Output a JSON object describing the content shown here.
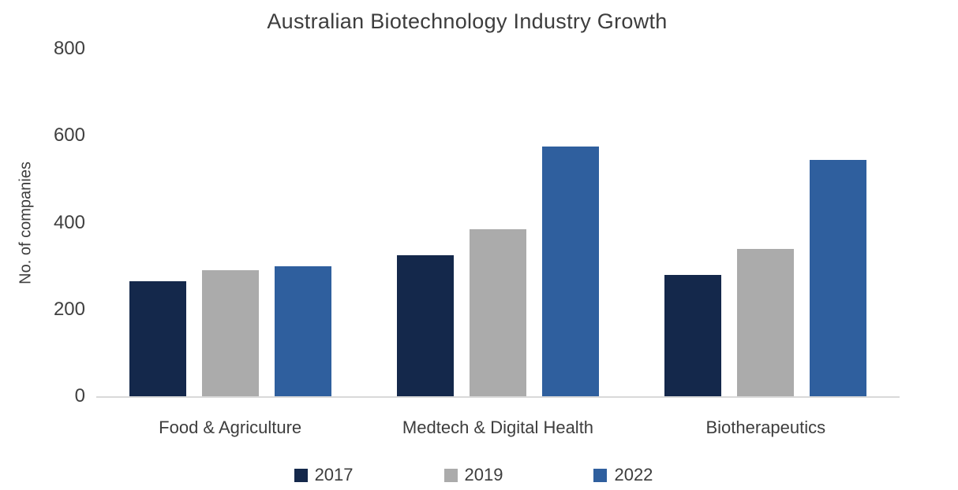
{
  "chart_data": {
    "type": "bar",
    "title": "Australian Biotechnology Industry Growth",
    "ylabel": "No. of companies",
    "xlabel": "",
    "categories": [
      "Food & Agriculture",
      "Medtech & Digital Health",
      "Biotherapeutics"
    ],
    "series": [
      {
        "name": "2017",
        "color": "#14284b",
        "values": [
          265,
          325,
          280
        ]
      },
      {
        "name": "2019",
        "color": "#ababab",
        "values": [
          290,
          385,
          340
        ]
      },
      {
        "name": "2022",
        "color": "#2f5f9e",
        "values": [
          300,
          575,
          545
        ]
      }
    ],
    "ylim": [
      0,
      800
    ],
    "yticks": [
      0,
      200,
      400,
      600,
      800
    ],
    "grid": false,
    "legend_position": "bottom",
    "axis_line_color": "#d9d9d9",
    "text_color": "#3d3d3d"
  }
}
